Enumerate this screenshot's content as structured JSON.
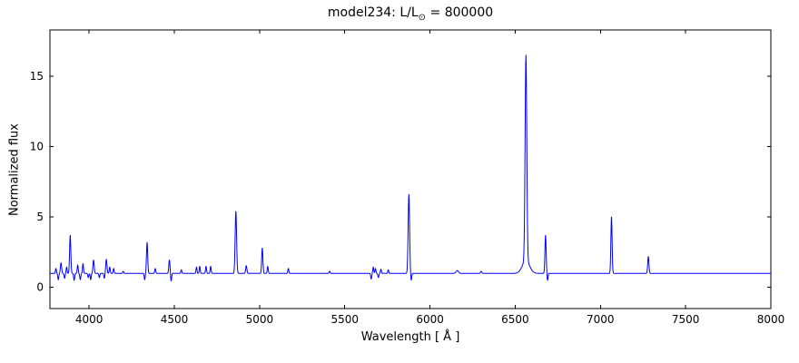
{
  "figure": {
    "title_prefix": "model234: L/L",
    "title_sub": "⊙",
    "title_suffix": " = 800000"
  },
  "chart_data": {
    "type": "line",
    "title": "model234: L/L⊙ = 800000",
    "xlabel": "Wavelength [ Å ]",
    "ylabel": "Normalized flux",
    "xlim": [
      3770,
      8000
    ],
    "ylim": [
      -1.5,
      18.3
    ],
    "xticks": [
      4000,
      4500,
      5000,
      5500,
      6000,
      6500,
      7000,
      7500,
      8000
    ],
    "yticks": [
      0,
      5,
      10,
      15
    ],
    "legend": "none",
    "grid": false,
    "line_color": "#0000ff",
    "axis_color": "#000000",
    "continuum": 1.0,
    "sample_step": 1.5,
    "peaks_note": "Gaussian features added to continuum; h>0 emission spikes, h<0 absorption dips; w = gaussian width in Angstroms; peak flux = continuum + h",
    "peaks": [
      {
        "x": 3805,
        "h": 0.35,
        "w": 4
      },
      {
        "x": 3819,
        "h": -0.45,
        "w": 4
      },
      {
        "x": 3835,
        "h": 0.75,
        "w": 5
      },
      {
        "x": 3856,
        "h": -0.35,
        "w": 4
      },
      {
        "x": 3868,
        "h": 0.45,
        "w": 4
      },
      {
        "x": 3889,
        "h": 2.7,
        "w": 5
      },
      {
        "x": 3912,
        "h": -0.5,
        "w": 4
      },
      {
        "x": 3933,
        "h": 0.6,
        "w": 4
      },
      {
        "x": 3948,
        "h": -0.45,
        "w": 4
      },
      {
        "x": 3964,
        "h": 0.7,
        "w": 4
      },
      {
        "x": 3995,
        "h": -0.3,
        "w": 4
      },
      {
        "x": 4009,
        "h": -0.45,
        "w": 4
      },
      {
        "x": 4026,
        "h": 0.95,
        "w": 5
      },
      {
        "x": 4060,
        "h": -0.3,
        "w": 4
      },
      {
        "x": 4089,
        "h": -0.35,
        "w": 4
      },
      {
        "x": 4101,
        "h": 1.0,
        "w": 5
      },
      {
        "x": 4121,
        "h": 0.45,
        "w": 4
      },
      {
        "x": 4144,
        "h": 0.35,
        "w": 4
      },
      {
        "x": 4200,
        "h": 0.15,
        "w": 4
      },
      {
        "x": 4326,
        "h": -0.45,
        "w": 4
      },
      {
        "x": 4340,
        "h": 2.2,
        "w": 5
      },
      {
        "x": 4388,
        "h": 0.35,
        "w": 4
      },
      {
        "x": 4471,
        "h": 0.95,
        "w": 5
      },
      {
        "x": 4481,
        "h": -0.55,
        "w": 4
      },
      {
        "x": 4541,
        "h": 0.25,
        "w": 4
      },
      {
        "x": 4630,
        "h": 0.45,
        "w": 4
      },
      {
        "x": 4649,
        "h": 0.5,
        "w": 4
      },
      {
        "x": 4686,
        "h": 0.5,
        "w": 4
      },
      {
        "x": 4713,
        "h": 0.5,
        "w": 4
      },
      {
        "x": 4861,
        "h": 4.4,
        "w": 6
      },
      {
        "x": 4922,
        "h": 0.55,
        "w": 5
      },
      {
        "x": 5016,
        "h": 1.8,
        "w": 5
      },
      {
        "x": 5048,
        "h": 0.5,
        "w": 4
      },
      {
        "x": 5169,
        "h": 0.35,
        "w": 4
      },
      {
        "x": 5411,
        "h": 0.15,
        "w": 4
      },
      {
        "x": 5655,
        "h": -0.4,
        "w": 4
      },
      {
        "x": 5667,
        "h": 0.45,
        "w": 4
      },
      {
        "x": 5680,
        "h": 0.35,
        "w": 4
      },
      {
        "x": 5697,
        "h": -0.3,
        "w": 4
      },
      {
        "x": 5712,
        "h": 0.3,
        "w": 4
      },
      {
        "x": 5755,
        "h": 0.25,
        "w": 4
      },
      {
        "x": 5876,
        "h": 5.6,
        "w": 6
      },
      {
        "x": 5890,
        "h": -0.5,
        "w": 4
      },
      {
        "x": 6160,
        "h": 0.2,
        "w": 10
      },
      {
        "x": 6300,
        "h": 0.15,
        "w": 5
      },
      {
        "x": 6563,
        "h": 14.6,
        "w": 7
      },
      {
        "x": 6563,
        "h": 0.9,
        "w": 30
      },
      {
        "x": 6678,
        "h": 2.7,
        "w": 5
      },
      {
        "x": 6690,
        "h": -0.5,
        "w": 4
      },
      {
        "x": 7065,
        "h": 4.0,
        "w": 5
      },
      {
        "x": 7281,
        "h": 1.2,
        "w": 5
      }
    ]
  }
}
